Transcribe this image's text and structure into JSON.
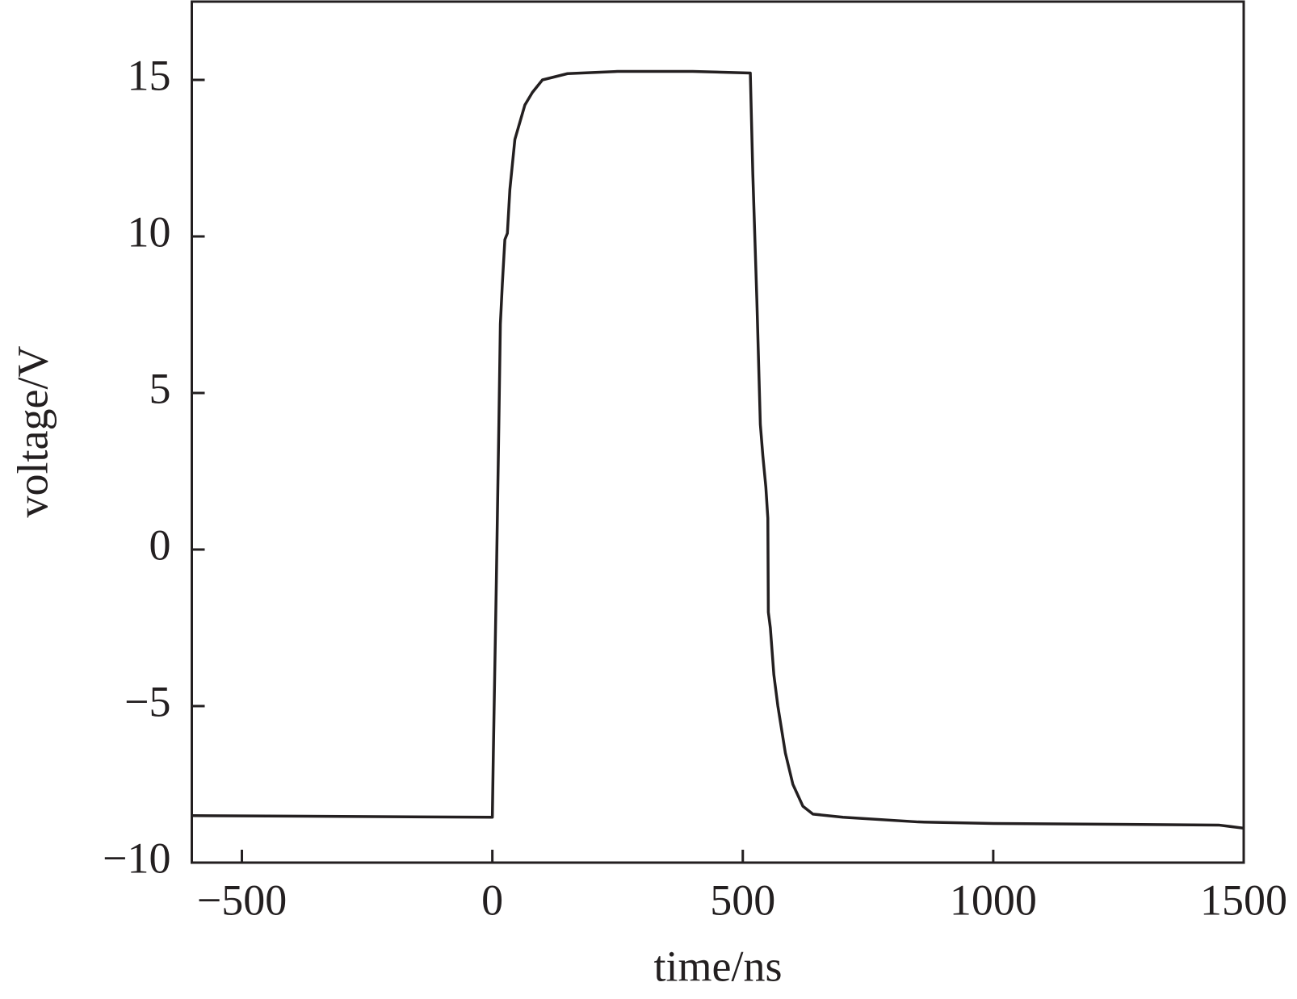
{
  "chart_data": {
    "type": "line",
    "xlabel": "time/ns",
    "ylabel": "voltage/V",
    "x": [
      -600,
      0,
      2,
      8,
      13,
      16,
      20,
      25,
      30,
      35,
      45,
      65,
      80,
      100,
      150,
      250,
      400,
      515,
      520,
      528,
      535,
      540,
      546,
      550,
      551,
      555,
      562,
      570,
      585,
      600,
      620,
      640,
      700,
      850,
      1000,
      1450,
      1500
    ],
    "values": [
      -8.5,
      -8.55,
      -6.5,
      -1,
      4,
      7.2,
      8.5,
      9.9,
      10.1,
      11.5,
      13.1,
      14.2,
      14.6,
      15.0,
      15.2,
      15.27,
      15.27,
      15.22,
      12,
      8,
      4,
      3,
      2,
      1,
      -2,
      -2.5,
      -4,
      -5,
      -6.5,
      -7.5,
      -8.2,
      -8.45,
      -8.55,
      -8.7,
      -8.75,
      -8.8,
      -8.9
    ],
    "color": "#231f20",
    "xlim": [
      -600,
      1500
    ],
    "ylim": [
      -10,
      17.5
    ],
    "xticks": [
      {
        "value": -500,
        "label": "−500"
      },
      0,
      500,
      1000,
      1500
    ],
    "yticks": [
      {
        "value": -10,
        "label": "−10"
      },
      {
        "value": -5,
        "label": "−5"
      },
      0,
      5,
      10,
      15
    ]
  }
}
